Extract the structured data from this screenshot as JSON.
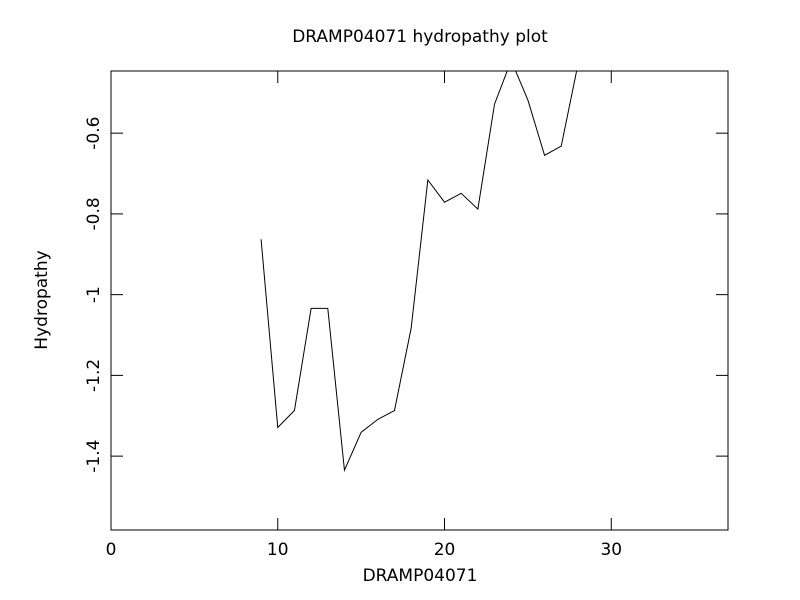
{
  "chart_data": {
    "type": "line",
    "title": "DRAMP04071 hydropathy plot",
    "x_label": "DRAMP04071",
    "y_label": "Hydropathy",
    "x": [
      9,
      10,
      11,
      12,
      13,
      14,
      15,
      16,
      17,
      18,
      19,
      20,
      21,
      22,
      23,
      24,
      25,
      26,
      27,
      28
    ],
    "series": [
      {
        "color": "#000000",
        "values": [
          -0.863,
          -1.329,
          -1.287,
          -1.034,
          -1.034,
          -1.435,
          -1.341,
          -1.309,
          -1.287,
          -1.083,
          -0.716,
          -0.771,
          -0.749,
          -0.788,
          -0.528,
          -0.42,
          -0.518,
          -0.655,
          -0.632,
          -0.43
        ]
      }
    ],
    "xlim": [
      0,
      37
    ],
    "xticks": [
      0,
      10,
      20,
      30
    ],
    "ylim": [
      -1.583,
      -0.446
    ],
    "yticks": [
      -1.4,
      -1.2,
      -1.0,
      -0.8,
      -0.6
    ],
    "grid": false
  }
}
